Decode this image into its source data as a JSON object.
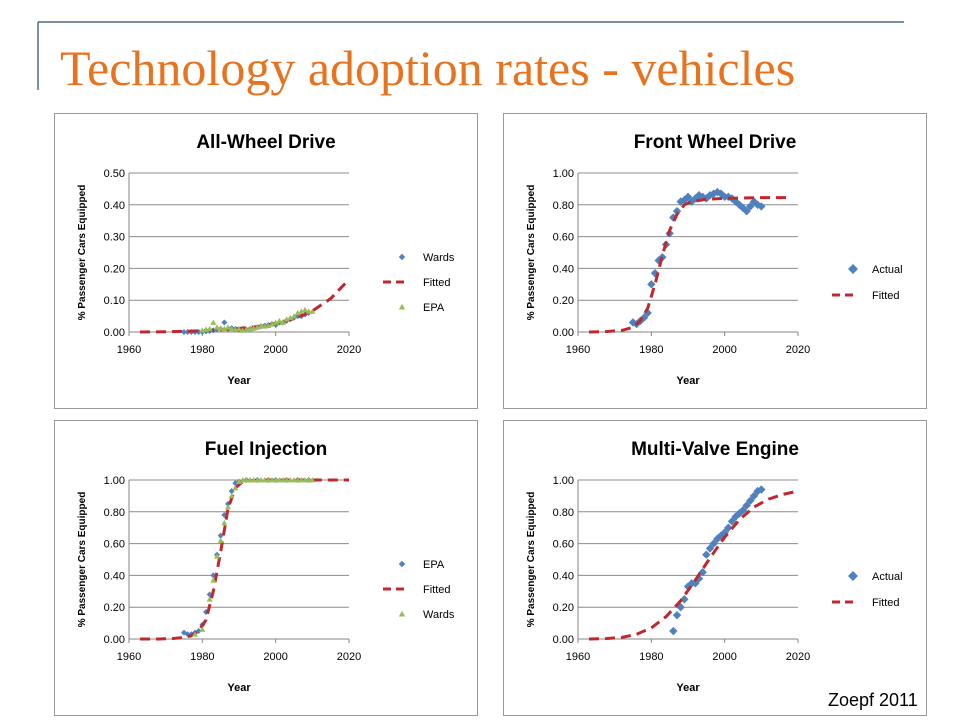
{
  "slide": {
    "title": "Technology adoption rates - vehicles",
    "credit": "Zoepf 2011",
    "title_color": "#e8731f",
    "accent_line_color": "#4a6b8a"
  },
  "colors": {
    "actual": "#4f81bd",
    "fitted": "#c0282d",
    "epa_green": "#9bbb59"
  },
  "chart_data": [
    {
      "type": "scatter",
      "title": "All-Wheel Drive",
      "xlabel": "Year",
      "ylabel": "% Passenger Cars Equipped",
      "xlim": [
        1960,
        2020
      ],
      "ylim": [
        0,
        0.5
      ],
      "xticks": [
        1960,
        1980,
        2000,
        2020
      ],
      "yticks": [
        0.0,
        0.1,
        0.2,
        0.3,
        0.4,
        0.5
      ],
      "ytick_labels": [
        "0.00",
        "0.10",
        "0.20",
        "0.30",
        "0.40",
        "0.50"
      ],
      "grid": true,
      "legend": "right",
      "series": [
        {
          "name": "Wards",
          "kind": "diamond",
          "color": "#4f81bd",
          "x": [
            1975,
            1976,
            1977,
            1978,
            1979,
            1980,
            1981,
            1982,
            1983,
            1984,
            1985,
            1986,
            1987,
            1988,
            1989,
            1990,
            1991,
            1992,
            1993,
            1994,
            1995,
            1996,
            1997,
            1998,
            1999,
            2000,
            2001,
            2002,
            2003,
            2004,
            2005,
            2006,
            2007,
            2008,
            2009
          ],
          "y": [
            0.0,
            0.0,
            0.0,
            0.0,
            0.0,
            0.0,
            0.002,
            0.003,
            0.005,
            0.008,
            0.01,
            0.03,
            0.01,
            0.012,
            0.01,
            0.008,
            0.01,
            0.008,
            0.01,
            0.012,
            0.015,
            0.018,
            0.02,
            0.022,
            0.025,
            0.022,
            0.03,
            0.03,
            0.035,
            0.04,
            0.045,
            0.05,
            0.05,
            0.055,
            0.06
          ]
        },
        {
          "name": "Fitted",
          "kind": "dashed",
          "color": "#c0282d",
          "x": [
            1963,
            1970,
            1975,
            1980,
            1985,
            1990,
            1995,
            2000,
            2005,
            2010,
            2015,
            2020
          ],
          "y": [
            0.0,
            0.001,
            0.002,
            0.004,
            0.007,
            0.011,
            0.017,
            0.027,
            0.042,
            0.066,
            0.105,
            0.165
          ]
        },
        {
          "name": "EPA",
          "kind": "triangle",
          "color": "#9bbb59",
          "x": [
            1980,
            1981,
            1982,
            1983,
            1984,
            1985,
            1986,
            1987,
            1988,
            1989,
            1990,
            1991,
            1992,
            1993,
            1994,
            1995,
            1996,
            1997,
            1998,
            1999,
            2000,
            2001,
            2002,
            2003,
            2004,
            2005,
            2006,
            2007,
            2008,
            2009,
            2010
          ],
          "y": [
            0.005,
            0.008,
            0.01,
            0.03,
            0.015,
            0.012,
            0.01,
            0.015,
            0.01,
            0.008,
            0.01,
            0.005,
            0.008,
            0.01,
            0.012,
            0.015,
            0.02,
            0.018,
            0.02,
            0.025,
            0.03,
            0.035,
            0.03,
            0.04,
            0.045,
            0.05,
            0.06,
            0.065,
            0.07,
            0.065,
            0.065
          ]
        }
      ]
    },
    {
      "type": "scatter",
      "title": "Front Wheel Drive",
      "xlabel": "Year",
      "ylabel": "% Passenger Cars Equipped",
      "xlim": [
        1960,
        2020
      ],
      "ylim": [
        0,
        1.0
      ],
      "xticks": [
        1960,
        1980,
        2000,
        2020
      ],
      "yticks": [
        0.0,
        0.2,
        0.4,
        0.6,
        0.8,
        1.0
      ],
      "ytick_labels": [
        "0.00",
        "0.20",
        "0.40",
        "0.60",
        "0.80",
        "1.00"
      ],
      "grid": true,
      "legend": "right",
      "series": [
        {
          "name": "Actual",
          "kind": "diamond",
          "color": "#4f81bd",
          "x": [
            1975,
            1976,
            1977,
            1978,
            1979,
            1980,
            1981,
            1982,
            1983,
            1984,
            1985,
            1986,
            1987,
            1988,
            1989,
            1990,
            1991,
            1992,
            1993,
            1994,
            1995,
            1996,
            1997,
            1998,
            1999,
            2000,
            2001,
            2002,
            2003,
            2004,
            2005,
            2006,
            2007,
            2008,
            2009,
            2010
          ],
          "y": [
            0.06,
            0.05,
            0.07,
            0.09,
            0.12,
            0.3,
            0.37,
            0.45,
            0.47,
            0.55,
            0.62,
            0.72,
            0.76,
            0.82,
            0.83,
            0.85,
            0.82,
            0.84,
            0.86,
            0.85,
            0.84,
            0.86,
            0.87,
            0.88,
            0.87,
            0.85,
            0.85,
            0.84,
            0.82,
            0.8,
            0.78,
            0.76,
            0.79,
            0.82,
            0.8,
            0.79
          ]
        },
        {
          "name": "Fitted",
          "kind": "dashed",
          "color": "#c0282d",
          "x": [
            1963,
            1968,
            1972,
            1975,
            1977,
            1979,
            1981,
            1983,
            1985,
            1987,
            1989,
            1991,
            1995,
            2000,
            2010,
            2018
          ],
          "y": [
            0.0,
            0.003,
            0.01,
            0.03,
            0.07,
            0.15,
            0.3,
            0.48,
            0.64,
            0.74,
            0.8,
            0.82,
            0.835,
            0.84,
            0.845,
            0.845
          ]
        }
      ]
    },
    {
      "type": "scatter",
      "title": "Fuel Injection",
      "xlabel": "Year",
      "ylabel": "% Passenger Cars Equipped",
      "xlim": [
        1960,
        2020
      ],
      "ylim": [
        0,
        1.0
      ],
      "xticks": [
        1960,
        1980,
        2000,
        2020
      ],
      "yticks": [
        0.0,
        0.2,
        0.4,
        0.6,
        0.8,
        1.0
      ],
      "ytick_labels": [
        "0.00",
        "0.20",
        "0.40",
        "0.60",
        "0.80",
        "1.00"
      ],
      "grid": true,
      "legend": "right",
      "series": [
        {
          "name": "EPA",
          "kind": "diamond",
          "color": "#4f81bd",
          "x": [
            1975,
            1976,
            1977,
            1978,
            1979,
            1980,
            1981,
            1982,
            1983,
            1984,
            1985,
            1986,
            1987,
            1988,
            1989,
            1990,
            1992,
            1995,
            1998,
            2000,
            2003,
            2006,
            2009
          ],
          "y": [
            0.04,
            0.03,
            0.03,
            0.04,
            0.05,
            0.09,
            0.17,
            0.28,
            0.4,
            0.53,
            0.65,
            0.78,
            0.85,
            0.93,
            0.98,
            0.99,
            1.0,
            1.0,
            1.0,
            1.0,
            1.0,
            1.0,
            1.0
          ]
        },
        {
          "name": "Fitted",
          "kind": "dashed",
          "color": "#c0282d",
          "x": [
            1963,
            1968,
            1972,
            1975,
            1977,
            1979,
            1981,
            1983,
            1985,
            1987,
            1989,
            1991,
            1995,
            2000,
            2010,
            2020
          ],
          "y": [
            0.0,
            0.0,
            0.003,
            0.01,
            0.02,
            0.05,
            0.12,
            0.3,
            0.55,
            0.82,
            0.95,
            0.99,
            1.0,
            1.0,
            1.0,
            1.0
          ]
        },
        {
          "name": "Wards",
          "kind": "triangle",
          "color": "#9bbb59",
          "x": [
            1978,
            1980,
            1982,
            1983,
            1984,
            1985,
            1986,
            1987,
            1988,
            1989,
            1990,
            1991,
            1992,
            1993,
            1994,
            1995,
            1996,
            1997,
            1998,
            1999,
            2000,
            2001,
            2002,
            2003,
            2004,
            2005,
            2006,
            2007,
            2008,
            2009,
            2010
          ],
          "y": [
            0.03,
            0.06,
            0.25,
            0.37,
            0.52,
            0.62,
            0.73,
            0.83,
            0.9,
            0.95,
            0.99,
            1.0,
            1.0,
            1.0,
            1.0,
            1.0,
            1.0,
            1.0,
            1.0,
            1.0,
            1.0,
            1.0,
            1.0,
            1.0,
            1.0,
            1.0,
            1.0,
            1.0,
            1.0,
            1.0,
            1.0
          ]
        }
      ]
    },
    {
      "type": "scatter",
      "title": "Multi-Valve Engine",
      "xlabel": "Year",
      "ylabel": "% Passenger Cars Equipped",
      "xlim": [
        1960,
        2020
      ],
      "ylim": [
        0,
        1.0
      ],
      "xticks": [
        1960,
        1980,
        2000,
        2020
      ],
      "yticks": [
        0.0,
        0.2,
        0.4,
        0.6,
        0.8,
        1.0
      ],
      "ytick_labels": [
        "0.00",
        "0.20",
        "0.40",
        "0.60",
        "0.80",
        "1.00"
      ],
      "grid": true,
      "legend": "right",
      "series": [
        {
          "name": "Actual",
          "kind": "diamond",
          "color": "#4f81bd",
          "x": [
            1986,
            1987,
            1988,
            1989,
            1990,
            1991,
            1992,
            1993,
            1994,
            1995,
            1996,
            1997,
            1998,
            1999,
            2000,
            2001,
            2002,
            2003,
            2004,
            2005,
            2006,
            2007,
            2008,
            2009,
            2010
          ],
          "y": [
            0.05,
            0.15,
            0.2,
            0.25,
            0.33,
            0.35,
            0.35,
            0.38,
            0.42,
            0.53,
            0.57,
            0.6,
            0.63,
            0.65,
            0.67,
            0.7,
            0.74,
            0.77,
            0.79,
            0.81,
            0.84,
            0.87,
            0.9,
            0.93,
            0.94
          ]
        },
        {
          "name": "Fitted",
          "kind": "dashed",
          "color": "#c0282d",
          "x": [
            1963,
            1968,
            1972,
            1976,
            1980,
            1984,
            1988,
            1992,
            1996,
            2000,
            2004,
            2008,
            2012,
            2016,
            2020
          ],
          "y": [
            0.0,
            0.003,
            0.01,
            0.03,
            0.07,
            0.14,
            0.24,
            0.37,
            0.51,
            0.64,
            0.75,
            0.83,
            0.88,
            0.91,
            0.93
          ]
        }
      ]
    }
  ]
}
